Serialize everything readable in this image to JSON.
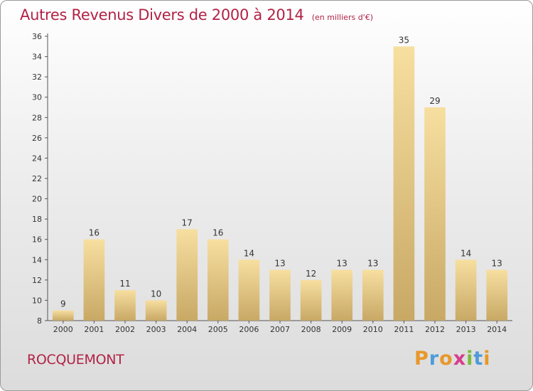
{
  "header": {
    "title": "Autres Revenus Divers de 2000 à 2014",
    "unit": "(en milliers d'€)"
  },
  "footer": {
    "commune": "ROCQUEMONT",
    "brand_letters": [
      "P",
      "r",
      "o",
      "x",
      "i",
      "t",
      "i"
    ],
    "brand_colors": [
      "#e8972a",
      "#4f9bd8",
      "#e8972a",
      "#d63c8e",
      "#7dbb3c",
      "#4f9bd8",
      "#e8972a"
    ]
  },
  "chart_data": {
    "type": "bar",
    "title": "Autres Revenus Divers de 2000 à 2014",
    "subtitle": "(en milliers d'€)",
    "xlabel": "",
    "ylabel": "",
    "categories": [
      "2000",
      "2001",
      "2002",
      "2003",
      "2004",
      "2005",
      "2006",
      "2007",
      "2008",
      "2009",
      "2010",
      "2011",
      "2012",
      "2013",
      "2014"
    ],
    "values": [
      9,
      16,
      11,
      10,
      17,
      16,
      14,
      13,
      12,
      13,
      13,
      35,
      29,
      14,
      13
    ],
    "ylim": [
      8,
      36
    ],
    "yticks": [
      8,
      10,
      12,
      14,
      16,
      18,
      20,
      22,
      24,
      26,
      28,
      30,
      32,
      34,
      36
    ],
    "grid": false,
    "legend": "none",
    "bar_color_light": "#f7dfa0",
    "bar_color_dark": "#c8a865",
    "text_color": "#b22245"
  }
}
